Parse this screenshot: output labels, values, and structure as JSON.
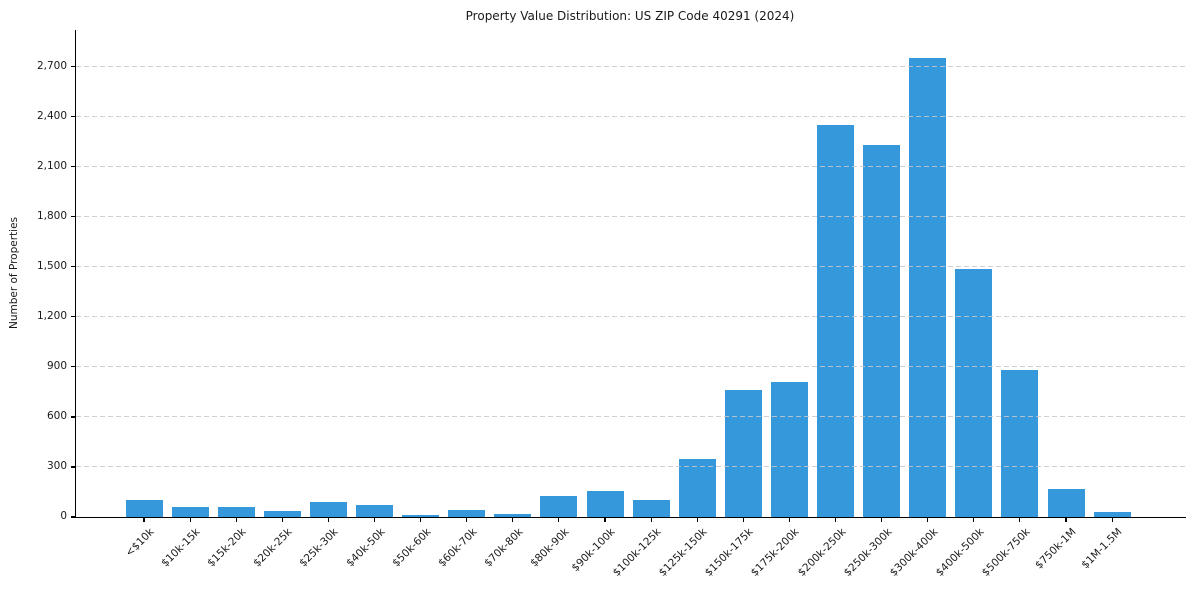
{
  "chart_data": {
    "type": "bar",
    "title": "Property Value Distribution: US ZIP Code 40291 (2024)",
    "xlabel": "",
    "ylabel": "Number of Properties",
    "categories": [
      "<$10k",
      "$10k-15k",
      "$15k-20k",
      "$20k-25k",
      "$25k-30k",
      "$40k-50k",
      "$50k-60k",
      "$60k-70k",
      "$70k-80k",
      "$80k-90k",
      "$90k-100k",
      "$100k-125k",
      "$125k-150k",
      "$150k-175k",
      "$175k-200k",
      "$200k-250k",
      "$250k-300k",
      "$300k-400k",
      "$400k-500k",
      "$500k-750k",
      "$750k-1M",
      "$1M-1.5M"
    ],
    "values": [
      100,
      60,
      60,
      35,
      90,
      70,
      10,
      45,
      20,
      125,
      155,
      105,
      350,
      760,
      810,
      2350,
      2230,
      2750,
      1490,
      880,
      170,
      30
    ],
    "yticks": [
      0,
      300,
      600,
      900,
      1200,
      1500,
      1800,
      2100,
      2400,
      2700
    ],
    "ylim": [
      0,
      2920
    ],
    "grid": "horizontal-dashed",
    "legend": "none",
    "bar_color": "#3498db",
    "axis_color": "#000000",
    "gridline_color": "#c8c8c8",
    "text_color": "#1a1a1a",
    "background": "#ffffff"
  }
}
